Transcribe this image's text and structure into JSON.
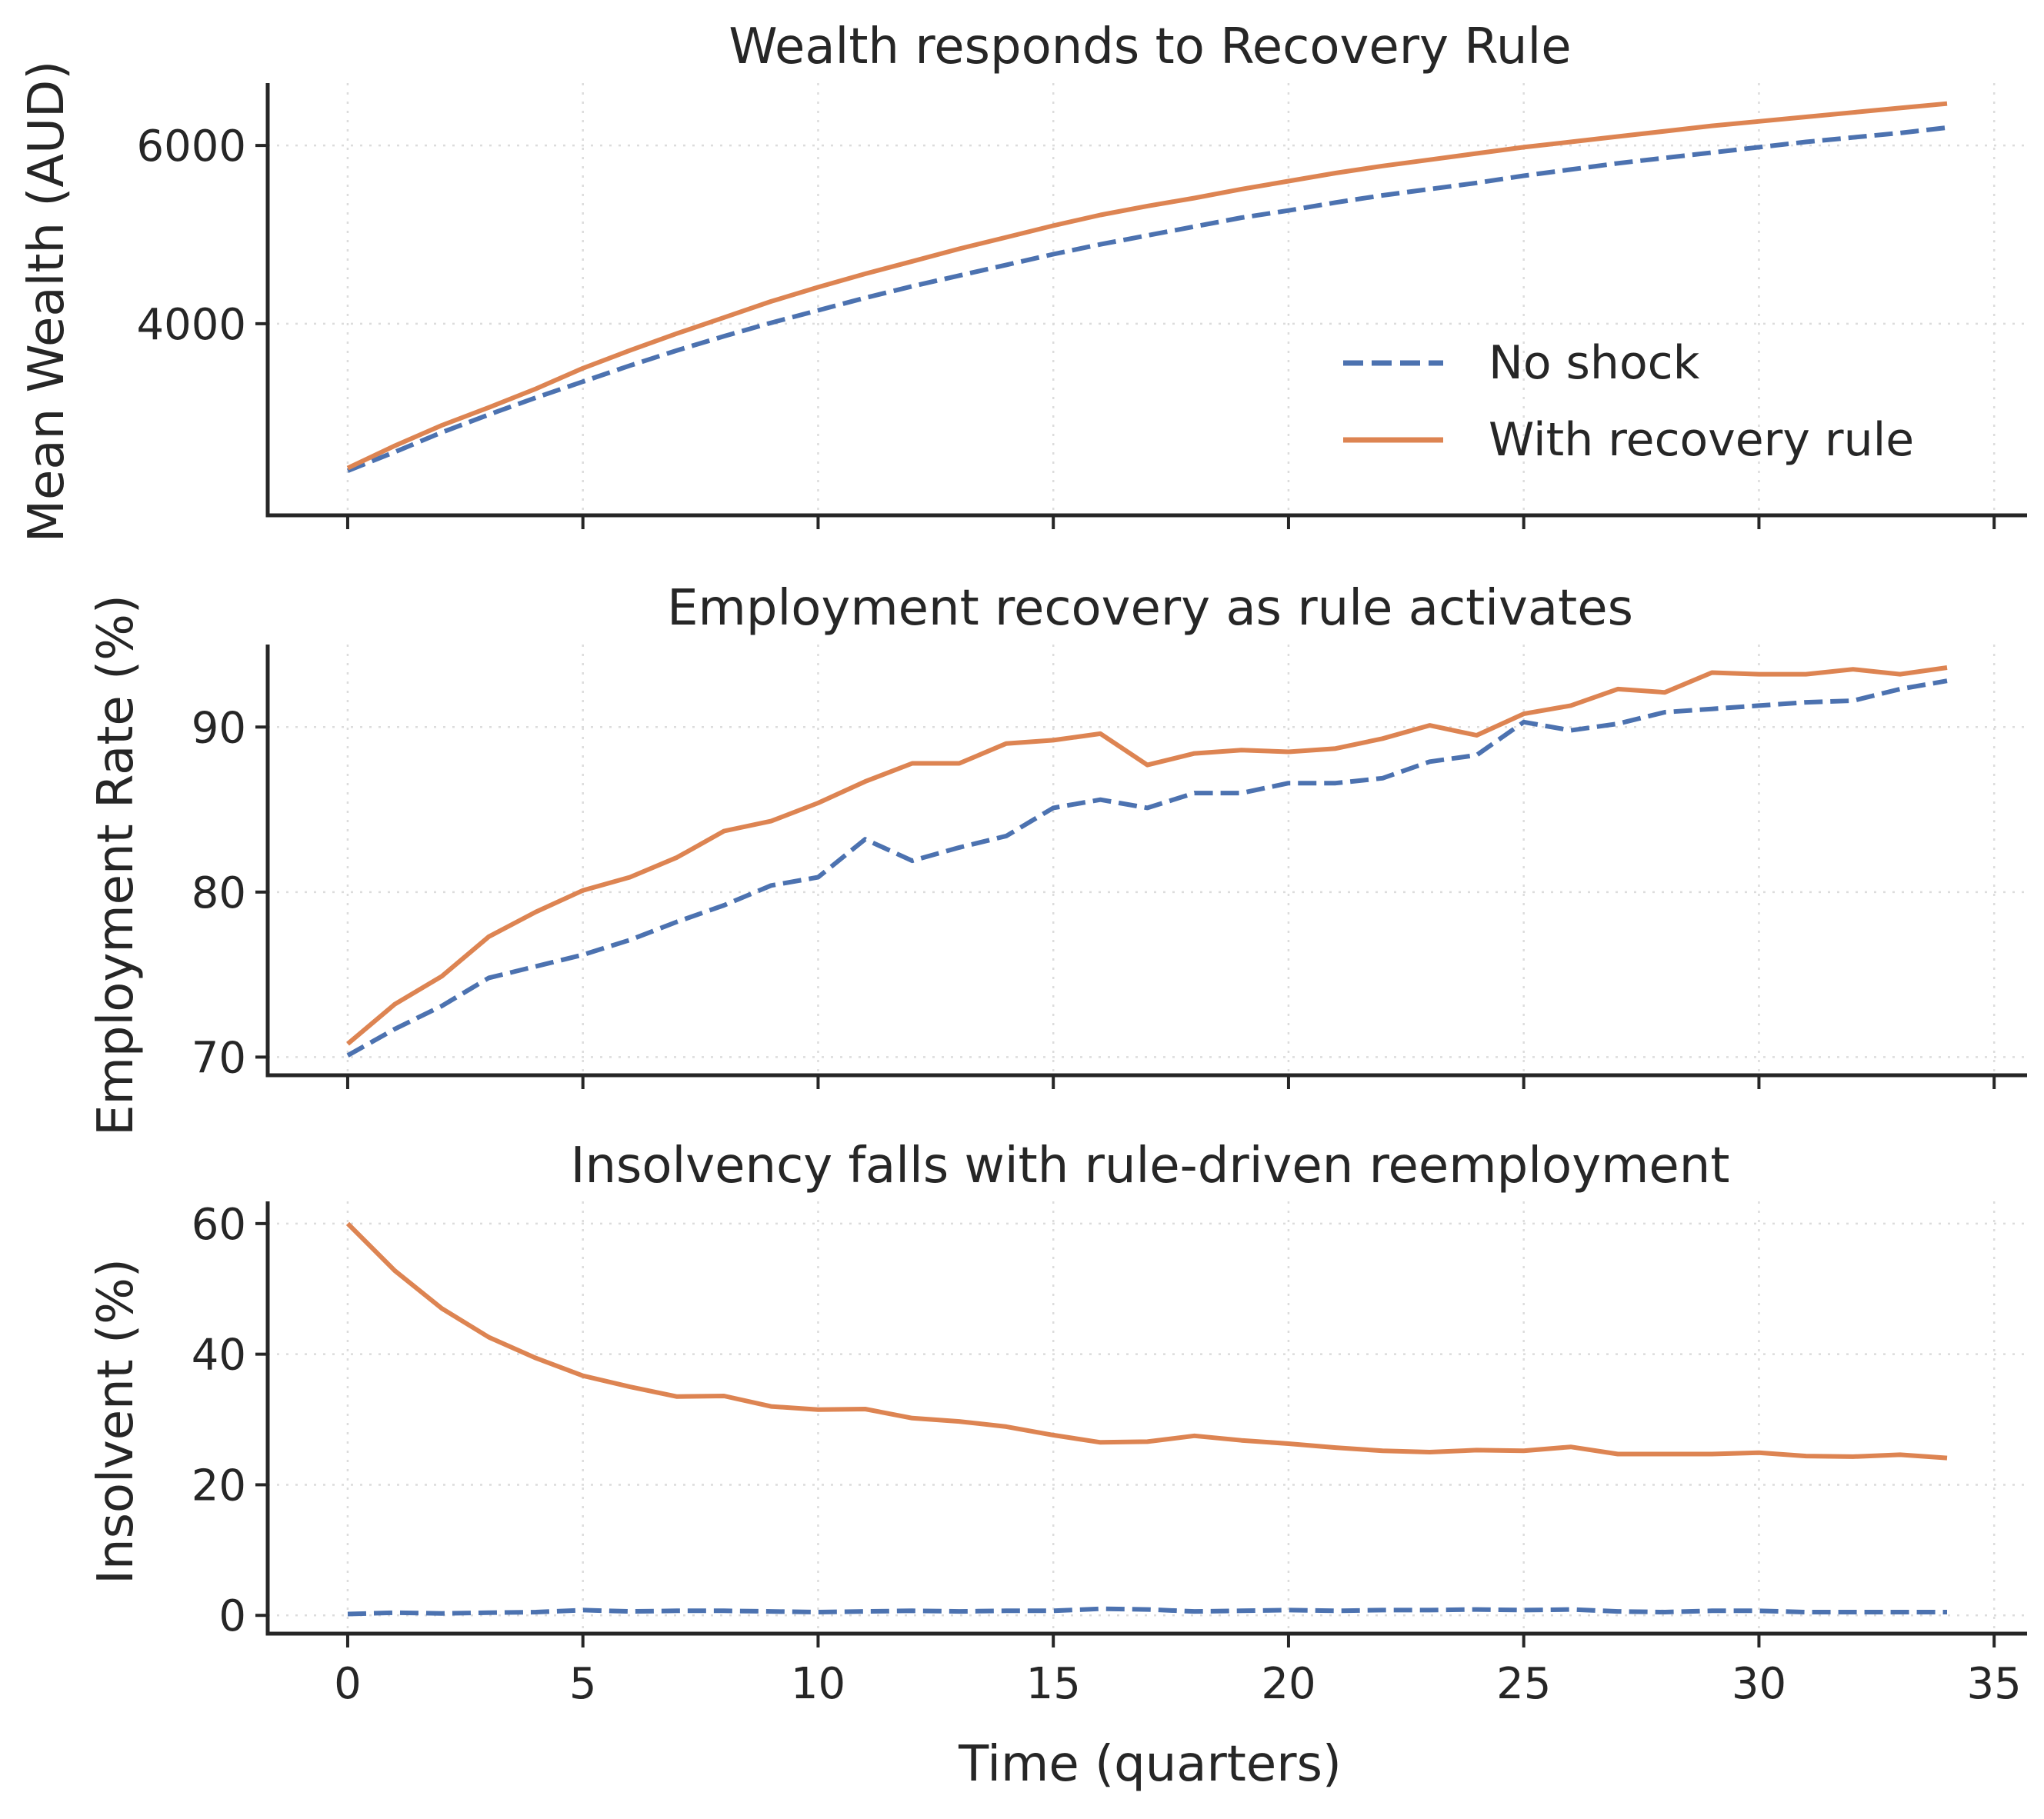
{
  "chart_data": [
    {
      "type": "line",
      "title": "Wealth responds to Recovery Rule",
      "ylabel": "Mean Wealth (AUD)",
      "xlabel": "",
      "xlim": [
        -1.7,
        35.7
      ],
      "ylim": [
        1850,
        6700
      ],
      "xticks": [
        0,
        5,
        10,
        15,
        20,
        25,
        30,
        35
      ],
      "yticks": [
        4000,
        6000
      ],
      "grid": true,
      "legend_position": "lower-right",
      "x": [
        0,
        1,
        2,
        3,
        4,
        5,
        6,
        7,
        8,
        9,
        10,
        11,
        12,
        13,
        14,
        15,
        16,
        17,
        18,
        19,
        20,
        21,
        22,
        23,
        24,
        25,
        26,
        27,
        28,
        29,
        30,
        31,
        32,
        33,
        34
      ],
      "series": [
        {
          "name": "No shock",
          "color": "#4c72b0",
          "style": "dashed",
          "values": [
            2350,
            2560,
            2780,
            2980,
            3170,
            3350,
            3530,
            3700,
            3860,
            4010,
            4150,
            4290,
            4420,
            4540,
            4660,
            4780,
            4890,
            4990,
            5090,
            5190,
            5270,
            5360,
            5440,
            5510,
            5580,
            5660,
            5730,
            5800,
            5860,
            5920,
            5980,
            6040,
            6090,
            6140,
            6200
          ]
        },
        {
          "name": "With recovery rule",
          "color": "#dd8452",
          "style": "solid",
          "values": [
            2380,
            2630,
            2860,
            3060,
            3270,
            3500,
            3700,
            3890,
            4070,
            4250,
            4410,
            4560,
            4700,
            4840,
            4970,
            5100,
            5220,
            5320,
            5410,
            5510,
            5600,
            5690,
            5770,
            5840,
            5910,
            5980,
            6040,
            6100,
            6160,
            6220,
            6270,
            6320,
            6370,
            6420,
            6470
          ]
        }
      ]
    },
    {
      "type": "line",
      "title": "Employment recovery as rule activates",
      "ylabel": "Employment Rate (%)",
      "xlabel": "",
      "xlim": [
        -1.7,
        35.7
      ],
      "ylim": [
        68.9,
        95
      ],
      "xticks": [
        0,
        5,
        10,
        15,
        20,
        25,
        30,
        35
      ],
      "yticks": [
        70,
        80,
        90
      ],
      "grid": true,
      "x": [
        0,
        1,
        2,
        3,
        4,
        5,
        6,
        7,
        8,
        9,
        10,
        11,
        12,
        13,
        14,
        15,
        16,
        17,
        18,
        19,
        20,
        21,
        22,
        23,
        24,
        25,
        26,
        27,
        28,
        29,
        30,
        31,
        32,
        33,
        34
      ],
      "series": [
        {
          "name": "No shock",
          "color": "#4c72b0",
          "style": "dashed",
          "values": [
            70.1,
            71.7,
            73.1,
            74.8,
            75.5,
            76.2,
            77.1,
            78.2,
            79.2,
            80.4,
            80.9,
            83.2,
            81.9,
            82.7,
            83.4,
            85.1,
            85.6,
            85.1,
            86.0,
            86.0,
            86.6,
            86.6,
            86.9,
            87.9,
            88.3,
            90.3,
            89.8,
            90.2,
            90.9,
            91.1,
            91.3,
            91.5,
            91.6,
            92.3,
            92.8
          ]
        },
        {
          "name": "With recovery rule",
          "color": "#dd8452",
          "style": "solid",
          "values": [
            70.8,
            73.2,
            74.9,
            77.3,
            78.8,
            80.1,
            80.9,
            82.1,
            83.7,
            84.3,
            85.4,
            86.7,
            87.8,
            87.8,
            89.0,
            89.2,
            89.6,
            87.7,
            88.4,
            88.6,
            88.5,
            88.7,
            89.3,
            90.1,
            89.5,
            90.8,
            91.3,
            92.3,
            92.1,
            93.3,
            93.2,
            93.2,
            93.5,
            93.2,
            93.6
          ]
        }
      ]
    },
    {
      "type": "line",
      "title": "Insolvency falls with rule-driven reemployment",
      "ylabel": "Insolvent (%)",
      "xlabel": "Time (quarters)",
      "xlim": [
        -1.7,
        35.7
      ],
      "ylim": [
        -2.8,
        63.4
      ],
      "xticks": [
        0,
        5,
        10,
        15,
        20,
        25,
        30,
        35
      ],
      "yticks": [
        0,
        20,
        40,
        60
      ],
      "grid": true,
      "x": [
        0,
        1,
        2,
        3,
        4,
        5,
        6,
        7,
        8,
        9,
        10,
        11,
        12,
        13,
        14,
        15,
        16,
        17,
        18,
        19,
        20,
        21,
        22,
        23,
        24,
        25,
        26,
        27,
        28,
        29,
        30,
        31,
        32,
        33,
        34
      ],
      "series": [
        {
          "name": "No shock",
          "color": "#4c72b0",
          "style": "dashed",
          "values": [
            0.2,
            0.4,
            0.3,
            0.4,
            0.5,
            0.8,
            0.6,
            0.7,
            0.7,
            0.6,
            0.5,
            0.6,
            0.7,
            0.6,
            0.7,
            0.7,
            1.0,
            0.9,
            0.6,
            0.7,
            0.8,
            0.7,
            0.8,
            0.8,
            0.9,
            0.8,
            0.9,
            0.6,
            0.5,
            0.7,
            0.7,
            0.5,
            0.5,
            0.5,
            0.5
          ]
        },
        {
          "name": "With recovery rule",
          "color": "#dd8452",
          "style": "solid",
          "values": [
            60.0,
            52.8,
            47.0,
            42.6,
            39.4,
            36.7,
            35.0,
            33.5,
            33.6,
            32.0,
            31.5,
            31.6,
            30.2,
            29.7,
            28.9,
            27.6,
            26.5,
            26.6,
            27.5,
            26.8,
            26.3,
            25.7,
            25.2,
            25.0,
            25.3,
            25.2,
            25.8,
            24.7,
            24.7,
            24.7,
            24.9,
            24.4,
            24.3,
            24.6,
            24.1
          ]
        }
      ]
    }
  ]
}
